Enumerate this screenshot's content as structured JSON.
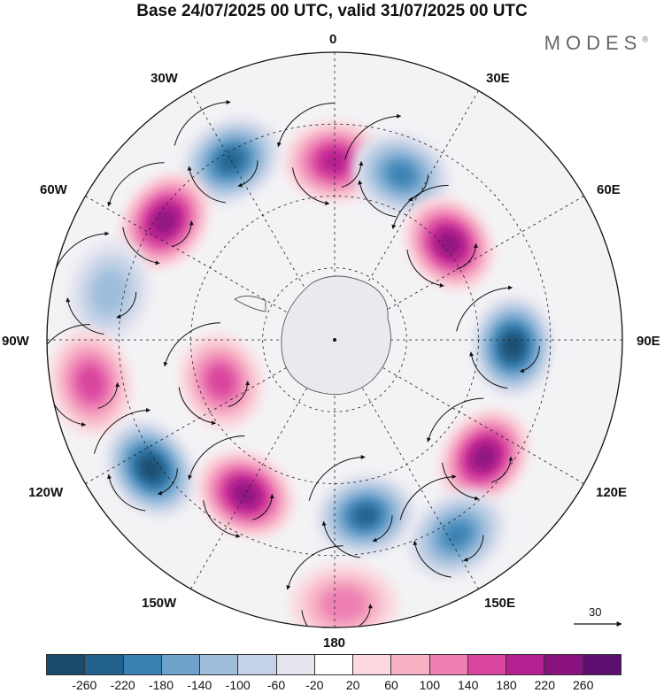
{
  "title": "Base 24/07/2025 00 UTC, valid 31/07/2025 00 UTC",
  "brand": "MODES",
  "brand_mark": "®",
  "map": {
    "projection": "south-polar-stereographic",
    "longitude_labels": {
      "top": "0",
      "top_right": "30E",
      "right_upper": "60E",
      "right": "90E",
      "right_lower": "120E",
      "bottom_right": "150E",
      "bottom": "180",
      "bottom_left": "150W",
      "left_lower": "120W",
      "left": "90W",
      "left_upper": "60W",
      "top_left": "30W"
    },
    "anomaly_centers": [
      {
        "lon_deg": 0,
        "lat_ring": 0.62,
        "value": 180,
        "label": "positive"
      },
      {
        "lon_deg": -30,
        "lat_ring": 0.72,
        "value": -240,
        "label": "negative"
      },
      {
        "lon_deg": -55,
        "lat_ring": 0.72,
        "value": 240,
        "label": "positive"
      },
      {
        "lon_deg": -78,
        "lat_ring": 0.8,
        "value": -120,
        "label": "negative"
      },
      {
        "lon_deg": -100,
        "lat_ring": 0.86,
        "value": 160,
        "label": "positive"
      },
      {
        "lon_deg": -110,
        "lat_ring": 0.42,
        "value": 140,
        "label": "positive"
      },
      {
        "lon_deg": -125,
        "lat_ring": 0.78,
        "value": -260,
        "label": "negative"
      },
      {
        "lon_deg": -150,
        "lat_ring": 0.62,
        "value": 240,
        "label": "positive"
      },
      {
        "lon_deg": 170,
        "lat_ring": 0.62,
        "value": -240,
        "label": "negative"
      },
      {
        "lon_deg": 178,
        "lat_ring": 0.92,
        "value": 120,
        "label": "positive"
      },
      {
        "lon_deg": 22,
        "lat_ring": 0.62,
        "value": -200,
        "label": "negative"
      },
      {
        "lon_deg": 50,
        "lat_ring": 0.52,
        "value": 240,
        "label": "positive"
      },
      {
        "lon_deg": 92,
        "lat_ring": 0.62,
        "value": -260,
        "label": "negative"
      },
      {
        "lon_deg": 128,
        "lat_ring": 0.66,
        "value": 220,
        "label": "positive"
      },
      {
        "lon_deg": 148,
        "lat_ring": 0.8,
        "value": -180,
        "label": "negative"
      }
    ]
  },
  "wind_reference": {
    "value": "30"
  },
  "colorbar": {
    "ticks": [
      "-260",
      "-220",
      "-180",
      "-140",
      "-100",
      "-60",
      "-20",
      "20",
      "60",
      "100",
      "140",
      "180",
      "220",
      "260"
    ],
    "colors": [
      "#1b4b6b",
      "#21618c",
      "#3a82b3",
      "#6fa3cb",
      "#9fbedc",
      "#c4d1e6",
      "#e4e4ef",
      "#ffffff",
      "#fbd9de",
      "#f7b2c6",
      "#ee80b3",
      "#d9449e",
      "#b51f8f",
      "#8a127f",
      "#5c0f6e"
    ]
  }
}
